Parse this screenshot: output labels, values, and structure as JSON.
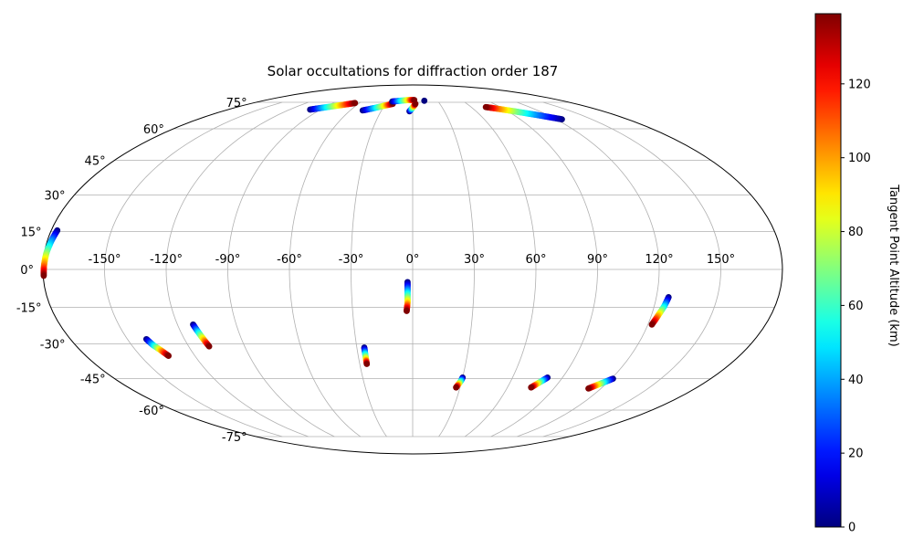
{
  "chart_data": {
    "type": "scatter",
    "projection": "mollweide",
    "title": "Solar occultations for diffraction order 187",
    "xlabel": "",
    "ylabel": "",
    "grid": true,
    "lon_ticks": [
      "-150°",
      "-120°",
      "-90°",
      "-60°",
      "-30°",
      "0°",
      "30°",
      "60°",
      "90°",
      "120°",
      "150°"
    ],
    "lat_ticks": [
      "75°",
      "60°",
      "45°",
      "30°",
      "15°",
      "0°",
      "-15°",
      "-30°",
      "-45°",
      "-60°",
      "-75°"
    ],
    "colorbar": {
      "label": "Tangent Point Altitude (km)",
      "colormap": "jet",
      "range": [
        0,
        139
      ],
      "ticks": [
        "0",
        "20",
        "40",
        "60",
        "80",
        "100",
        "120"
      ]
    },
    "series": [
      {
        "points": [
          [
            -177,
            15.5,
            0
          ],
          [
            -178,
            11.5,
            35
          ],
          [
            -179,
            6.5,
            70
          ],
          [
            -179.5,
            1.5,
            105
          ],
          [
            -179.7,
            -2.5,
            139
          ]
        ]
      },
      {
        "points": [
          [
            -140,
            -28,
            0
          ],
          [
            -138.5,
            -30.5,
            45
          ],
          [
            -136.5,
            -32.5,
            90
          ],
          [
            -134.5,
            -35,
            139
          ]
        ]
      },
      {
        "points": [
          [
            -112,
            -22,
            0
          ],
          [
            -111,
            -25,
            45
          ],
          [
            -110,
            -28,
            90
          ],
          [
            -109,
            -31,
            139
          ]
        ]
      },
      {
        "points": [
          [
            -26,
            -31.5,
            0
          ],
          [
            -26,
            -34,
            45
          ],
          [
            -26,
            -36.5,
            90
          ],
          [
            -26,
            -38.5,
            139
          ]
        ]
      },
      {
        "points": [
          [
            -2.5,
            -5,
            0
          ],
          [
            -2.5,
            -9,
            45
          ],
          [
            -2.5,
            -13,
            90
          ],
          [
            -3,
            -16.5,
            139
          ]
        ]
      },
      {
        "points": [
          [
            30,
            -44.5,
            0
          ],
          [
            29.5,
            -46,
            45
          ],
          [
            28.5,
            -47.5,
            90
          ],
          [
            27.5,
            -49,
            139
          ]
        ]
      },
      {
        "points": [
          [
            81,
            -44.5,
            0
          ],
          [
            79,
            -46,
            45
          ],
          [
            77,
            -47.5,
            90
          ],
          [
            75,
            -49,
            139
          ]
        ]
      },
      {
        "points": [
          [
            121,
            -45,
            0
          ],
          [
            118,
            -46.5,
            45
          ],
          [
            115,
            -48,
            90
          ],
          [
            112,
            -49.5,
            139
          ]
        ]
      },
      {
        "points": [
          [
            126,
            -11,
            0
          ],
          [
            125,
            -14.5,
            45
          ],
          [
            123.5,
            -18,
            90
          ],
          [
            122,
            -22,
            139
          ]
        ]
      },
      {
        "points": [
          [
            -100,
            70.5,
            0
          ],
          [
            -92,
            71.5,
            35
          ],
          [
            -83,
            72.5,
            70
          ],
          [
            -74,
            73.5,
            105
          ],
          [
            -65,
            74.5,
            139
          ]
        ]
      },
      {
        "points": [
          [
            -48,
            70,
            0
          ],
          [
            -38,
            71.5,
            45
          ],
          [
            -29,
            73,
            90
          ],
          [
            -22,
            74,
            139
          ]
        ]
      },
      {
        "points": [
          [
            -3,
            69.5,
            0
          ],
          [
            -1,
            71,
            45
          ],
          [
            1,
            72.5,
            90
          ],
          [
            3,
            74,
            139
          ]
        ]
      },
      {
        "points": [
          [
            -24,
            75.5,
            0
          ],
          [
            -15,
            76,
            45
          ],
          [
            -5,
            76.5,
            90
          ],
          [
            2,
            76.5,
            139
          ]
        ]
      },
      {
        "points": [
          [
            14,
            76,
            0
          ]
        ]
      },
      {
        "points": [
          [
            125,
            65,
            0
          ],
          [
            110,
            67.5,
            35
          ],
          [
            96,
            69.5,
            70
          ],
          [
            84,
            71,
            105
          ],
          [
            75,
            72,
            139
          ]
        ]
      }
    ]
  }
}
